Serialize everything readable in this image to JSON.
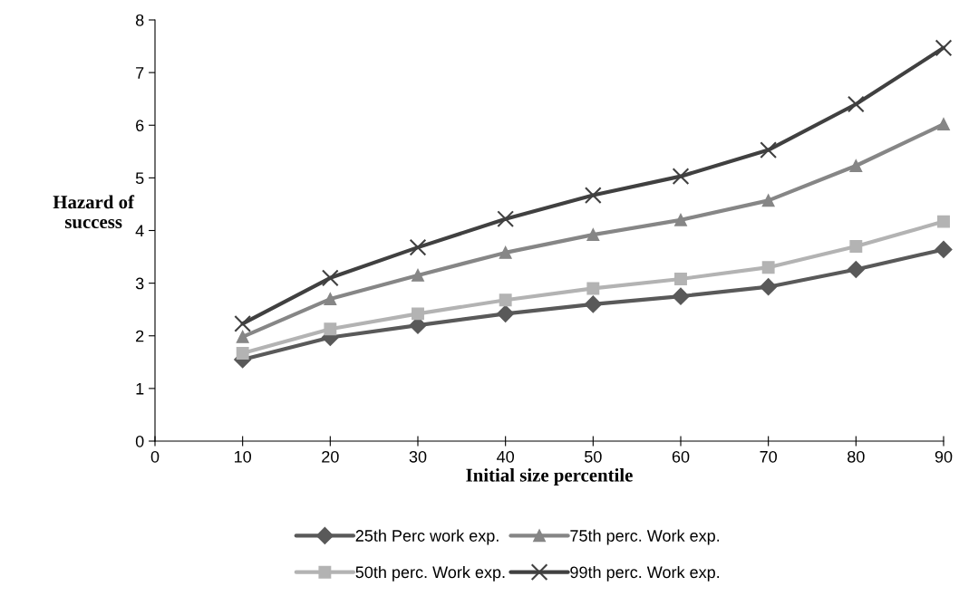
{
  "chart_data": {
    "type": "line",
    "xlabel": "Initial size percentile",
    "ylabel": "Hazard of\nsuccess",
    "x": [
      10,
      20,
      30,
      40,
      50,
      60,
      70,
      80,
      90
    ],
    "xlim": [
      0,
      90
    ],
    "xticks": [
      0,
      10,
      20,
      30,
      40,
      50,
      60,
      70,
      80,
      90
    ],
    "ylim": [
      0,
      8
    ],
    "yticks": [
      0,
      1,
      2,
      3,
      4,
      5,
      6,
      7,
      8
    ],
    "grid": false,
    "legend": "bottom",
    "line_style": "solid",
    "series": [
      {
        "name": "25th Perc work exp.",
        "color": "#595959",
        "marker": "diamond",
        "values": [
          1.55,
          1.97,
          2.2,
          2.42,
          2.6,
          2.75,
          2.93,
          3.26,
          3.64
        ]
      },
      {
        "name": "50th perc. Work exp.",
        "color": "#b3b3b3",
        "marker": "square",
        "values": [
          1.67,
          2.13,
          2.42,
          2.68,
          2.9,
          3.08,
          3.3,
          3.7,
          4.17
        ]
      },
      {
        "name": "75th perc. Work exp.",
        "color": "#868686",
        "marker": "triangle",
        "values": [
          1.98,
          2.7,
          3.15,
          3.58,
          3.92,
          4.2,
          4.57,
          5.23,
          6.02
        ]
      },
      {
        "name": "99th perc. Work exp.",
        "color": "#404040",
        "marker": "cross",
        "values": [
          2.23,
          3.1,
          3.68,
          4.22,
          4.67,
          5.03,
          5.53,
          6.4,
          7.47
        ]
      }
    ]
  }
}
